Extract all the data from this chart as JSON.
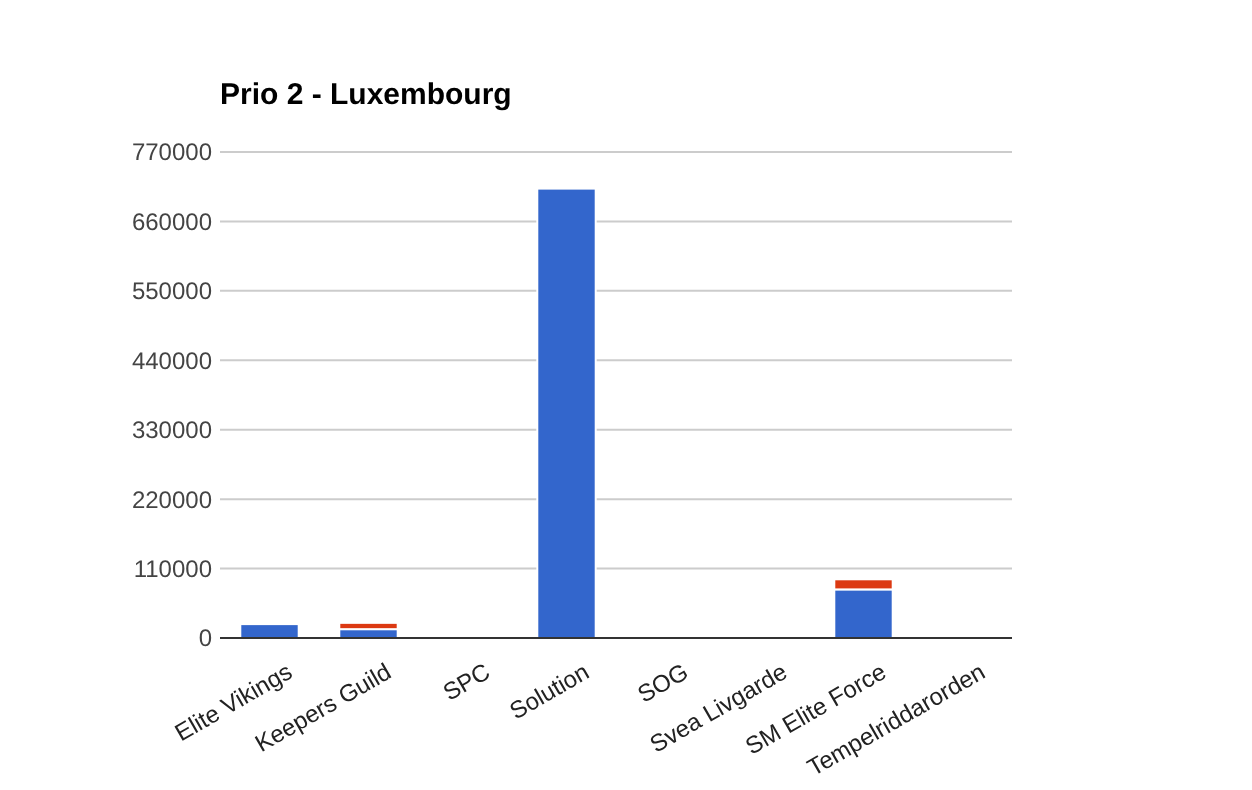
{
  "chart_data": {
    "type": "bar",
    "title": "Prio 2 - Luxembourg",
    "stacked": true,
    "categories": [
      "Elite Vikings",
      "Keepers Guild",
      "SPC",
      "Solution",
      "SOG",
      "Svea Livgarde",
      "SM Elite Force",
      "Tempelriddarorden"
    ],
    "series": [
      {
        "color": "#3366cc",
        "values": [
          22000,
          14000,
          0,
          712000,
          0,
          0,
          77000,
          0
        ]
      },
      {
        "color": "#dc3912",
        "values": [
          0,
          10000,
          0,
          0,
          0,
          0,
          16000,
          0
        ]
      }
    ],
    "ylim": [
      0,
      770000
    ],
    "yticks": [
      0,
      110000,
      220000,
      330000,
      440000,
      550000,
      660000,
      770000
    ],
    "grid": "y"
  }
}
